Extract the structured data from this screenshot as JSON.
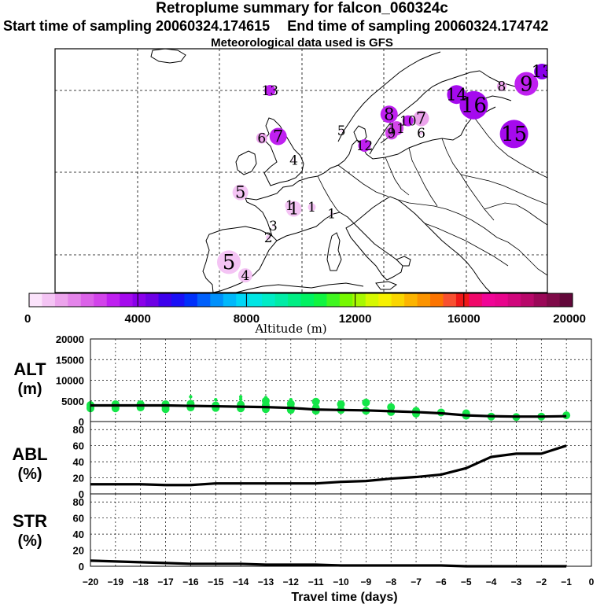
{
  "title": {
    "line1": "Retroplume summary for falcon_060324c",
    "start": "Start time of sampling 20060324.174615",
    "end": "End time of sampling 20060324.174742",
    "line3": "Meteorological data used is GFS"
  },
  "colors": {
    "cbar": [
      "#fbe3fb",
      "#f4c4f4",
      "#eca4ec",
      "#e485ea",
      "#db63e8",
      "#d244ea",
      "#bf20f0",
      "#a50aee",
      "#8a00ea",
      "#6e00e4",
      "#3d00ec",
      "#1a10f6",
      "#0030fa",
      "#0060fb",
      "#0090fb",
      "#00b8fb",
      "#00d6f6",
      "#00e6e4",
      "#00ecc6",
      "#00eca6",
      "#00ee84",
      "#00f262",
      "#10f440",
      "#40f620",
      "#76f800",
      "#a8f800",
      "#d6f800",
      "#f6f000",
      "#fad600",
      "#fcb400",
      "#fc9400",
      "#fc7400",
      "#f85030",
      "#f01818",
      "#f0086a",
      "#f00496",
      "#e8048c",
      "#d0067c",
      "#b8086a",
      "#9a0858",
      "#7e0a48",
      "#62083a"
    ],
    "plume_line": "#ee9ef0",
    "ts_green": "#14e648"
  },
  "chart_data": [
    {
      "type": "scatter",
      "title": "Retroplume cluster map",
      "xlabel": "Altitude (m)",
      "colorbar": {
        "min": 0,
        "max": 20000,
        "ticks": [
          "0",
          "4000",
          "8000",
          "12000",
          "16000",
          "20000"
        ],
        "label": "Altitude (m)"
      },
      "clusters": [
        {
          "label": "1",
          "x": 9.0,
          "y": 15.6,
          "r": 10,
          "alt": 800
        },
        {
          "label": "1",
          "x": 8.5,
          "y": 16.0,
          "r": 6,
          "alt": 800
        },
        {
          "label": "1",
          "x": 11.2,
          "y": 15.8,
          "r": 5,
          "alt": 900
        },
        {
          "label": "1",
          "x": 13.6,
          "y": 15.0,
          "r": 2,
          "alt": 500
        },
        {
          "label": "2",
          "x": 5.9,
          "y": 12.1,
          "r": 3,
          "alt": 600
        },
        {
          "label": "2",
          "x": 8.4,
          "y": 4.3,
          "r": 11,
          "alt": 900
        },
        {
          "label": "3",
          "x": 6.5,
          "y": 13.5,
          "r": 2,
          "alt": 300
        },
        {
          "label": "4",
          "x": 3.1,
          "y": 7.5,
          "r": 9,
          "alt": 900
        },
        {
          "label": "4",
          "x": 9.0,
          "y": 21.5,
          "r": 2,
          "alt": 300
        },
        {
          "label": "5",
          "x": 1.1,
          "y": 9.1,
          "r": 15,
          "alt": 900
        },
        {
          "label": "5",
          "x": 2.5,
          "y": 17.6,
          "r": 10,
          "alt": 900
        },
        {
          "label": "5",
          "x": 14.8,
          "y": 25.1,
          "r": 2,
          "alt": 400
        },
        {
          "label": "6",
          "x": 5.1,
          "y": 24.2,
          "r": 7,
          "alt": 1000
        },
        {
          "label": "6",
          "x": 24.5,
          "y": 24.8,
          "r": 2,
          "alt": 500
        },
        {
          "label": "7",
          "x": 7.1,
          "y": 24.4,
          "r": 11,
          "alt": 3100
        },
        {
          "label": "7",
          "x": 24.5,
          "y": 26.6,
          "r": 10,
          "alt": 1400
        },
        {
          "label": "8",
          "x": 20.6,
          "y": 27.1,
          "r": 11,
          "alt": 3000
        },
        {
          "label": "8",
          "x": 34.3,
          "y": 30.5,
          "r": 6,
          "alt": 1000
        },
        {
          "label": "9",
          "x": 37.3,
          "y": 30.8,
          "r": 15,
          "alt": 2900
        },
        {
          "label": "9",
          "x": 20.9,
          "y": 24.8,
          "r": 8,
          "alt": 2500
        },
        {
          "label": "10",
          "x": 22.9,
          "y": 26.3,
          "r": 7,
          "alt": 3300
        },
        {
          "label": "11",
          "x": 21.5,
          "y": 25.4,
          "r": 9,
          "alt": 2500
        },
        {
          "label": "12",
          "x": 17.6,
          "y": 23.3,
          "r": 8,
          "alt": 3200
        },
        {
          "label": "13",
          "x": 6.1,
          "y": 30.0,
          "r": 7,
          "alt": 3300
        },
        {
          "label": "13",
          "x": 39.2,
          "y": 32.3,
          "r": 10,
          "alt": 4200
        },
        {
          "label": "14",
          "x": 28.8,
          "y": 29.5,
          "r": 12,
          "alt": 3800
        },
        {
          "label": "15",
          "x": 35.8,
          "y": 24.7,
          "r": 18,
          "alt": 3700
        },
        {
          "label": "16",
          "x": 30.9,
          "y": 28.2,
          "r": 18,
          "alt": 3600
        },
        {
          "label": "17",
          "x": 43.5,
          "y": 33.0,
          "r": 12,
          "alt": 4300
        }
      ],
      "plume_path": [
        [
          -5.2,
          3.8
        ],
        [
          9.0,
          13.2
        ],
        [
          16.5,
          18.6
        ],
        [
          19.6,
          21.0
        ],
        [
          30.8,
          26.0
        ]
      ]
    },
    {
      "type": "line",
      "title": "ALT (m)",
      "ylabel": "ALT (m)",
      "ylim": [
        0,
        20000
      ],
      "yticks": [
        "0",
        "5000",
        "10000",
        "15000",
        "20000"
      ],
      "x": [
        -20,
        -19,
        -18,
        -17,
        -16,
        -15,
        -14,
        -13,
        -12,
        -11,
        -10,
        -9,
        -8,
        -7,
        -6,
        -5,
        -4,
        -3,
        -2,
        -1
      ],
      "values": [
        3900,
        3900,
        3900,
        3900,
        3800,
        3700,
        3600,
        3500,
        3300,
        2900,
        2800,
        2700,
        2500,
        2300,
        2000,
        1500,
        1300,
        1200,
        1200,
        1300
      ],
      "scatter_points": [
        [
          -20,
          4000
        ],
        [
          -20,
          3500
        ],
        [
          -20,
          3200
        ],
        [
          -19,
          4200
        ],
        [
          -19,
          3600
        ],
        [
          -19,
          3200
        ],
        [
          -18,
          4200
        ],
        [
          -18,
          3800
        ],
        [
          -18,
          3400
        ],
        [
          -17,
          4200
        ],
        [
          -17,
          3600
        ],
        [
          -17,
          3000
        ],
        [
          -16,
          4300
        ],
        [
          -16,
          3800
        ],
        [
          -16,
          3400
        ],
        [
          -16,
          6000
        ],
        [
          -15,
          3900
        ],
        [
          -15,
          3300
        ],
        [
          -15,
          5300
        ],
        [
          -14,
          4100
        ],
        [
          -14,
          3200
        ],
        [
          -14,
          5400
        ],
        [
          -14,
          6000
        ],
        [
          -13,
          4000
        ],
        [
          -13,
          3000
        ],
        [
          -13,
          5000
        ],
        [
          -13,
          5800
        ],
        [
          -12,
          3400
        ],
        [
          -12,
          2800
        ],
        [
          -12,
          4300
        ],
        [
          -12,
          5300
        ],
        [
          -11,
          3300
        ],
        [
          -11,
          2600
        ],
        [
          -11,
          4800
        ],
        [
          -10,
          2800
        ],
        [
          -10,
          4200
        ],
        [
          -9,
          2600
        ],
        [
          -9,
          4600
        ],
        [
          -8,
          3500
        ],
        [
          -8,
          2300
        ],
        [
          -7,
          2600
        ],
        [
          -7,
          1900
        ],
        [
          -6,
          2200
        ],
        [
          -5,
          1400
        ],
        [
          -5,
          2000
        ],
        [
          -4,
          1200
        ],
        [
          -3,
          1100
        ],
        [
          -2,
          1200
        ],
        [
          -1,
          1500
        ]
      ]
    },
    {
      "type": "line",
      "title": "ABL (%)",
      "ylabel": "ABL (%)",
      "ylim": [
        0,
        90
      ],
      "yticks": [
        "0",
        "20",
        "40",
        "60",
        "80"
      ],
      "x": [
        -20,
        -19,
        -18,
        -17,
        -16,
        -15,
        -14,
        -13,
        -12,
        -11,
        -10,
        -9,
        -8,
        -7,
        -6,
        -5,
        -4,
        -3,
        -2,
        -1
      ],
      "values": [
        12,
        12,
        12,
        11,
        11,
        13,
        13,
        13,
        13,
        13,
        15,
        16,
        19,
        21,
        24,
        32,
        46,
        50,
        50,
        60
      ]
    },
    {
      "type": "line",
      "title": "STR (%)",
      "ylabel": "STR (%)",
      "xlabel": "Travel time (days)",
      "ylim": [
        0,
        90
      ],
      "yticks": [
        "0",
        "20",
        "40",
        "60",
        "80"
      ],
      "xticks": [
        "−20",
        "−19",
        "−18",
        "−17",
        "−16",
        "−15",
        "−14",
        "−13",
        "−12",
        "−11",
        "−10",
        "−9",
        "−8",
        "−7",
        "−6",
        "−5",
        "−4",
        "−3",
        "−2",
        "−1",
        "0"
      ],
      "x": [
        -20,
        -19,
        -18,
        -17,
        -16,
        -15,
        -14,
        -13,
        -12,
        -11,
        -10,
        -9,
        -8,
        -7,
        -6,
        -5,
        -4,
        -3,
        -2,
        -1
      ],
      "values": [
        7,
        6,
        5,
        4,
        3,
        3,
        3,
        2,
        2,
        2,
        1,
        1,
        1,
        1,
        1,
        0,
        0,
        0,
        0,
        0
      ]
    }
  ],
  "labels": {
    "alt_l1": "ALT",
    "alt_l2": "(m)",
    "abl_l1": "ABL",
    "abl_l2": "(%)",
    "str_l1": "STR",
    "str_l2": "(%)"
  }
}
